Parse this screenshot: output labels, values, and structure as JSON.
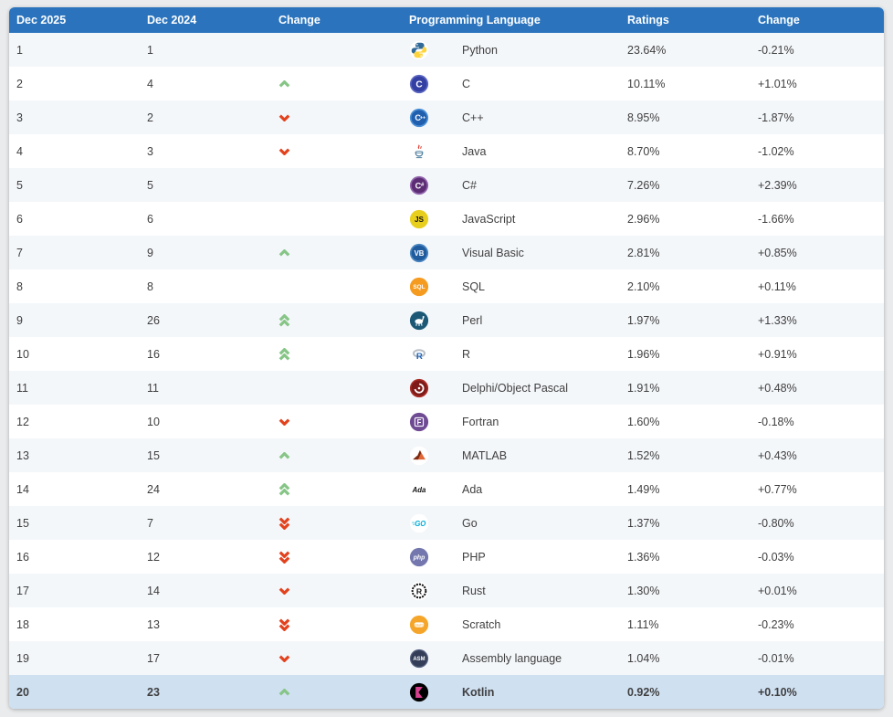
{
  "theme": {
    "page_bg": "#e9ebed",
    "header_bg": "#2b74bd",
    "header_fg": "#ffffff",
    "row_light_bg": "#f4f7fa",
    "row_white_bg": "#ffffff",
    "row_highlight_bg": "#cfe0f1",
    "text_color": "#3f3f3f",
    "up_arrow_color": "#86c586",
    "down_arrow_color": "#e2431e"
  },
  "table": {
    "columns": [
      "Dec 2025",
      "Dec 2024",
      "Change",
      "Programming Language",
      "Ratings",
      "Change"
    ],
    "rows": [
      {
        "rank": "1",
        "prev": "1",
        "trend": "",
        "icon": "python-icon",
        "language": "Python",
        "ratings": "23.64%",
        "change": "-0.21%",
        "highlight": false
      },
      {
        "rank": "2",
        "prev": "4",
        "trend": "up",
        "icon": "c-icon",
        "language": "C",
        "ratings": "10.11%",
        "change": "+1.01%",
        "highlight": false
      },
      {
        "rank": "3",
        "prev": "2",
        "trend": "down",
        "icon": "cpp-icon",
        "language": "C++",
        "ratings": "8.95%",
        "change": "-1.87%",
        "highlight": false
      },
      {
        "rank": "4",
        "prev": "3",
        "trend": "down",
        "icon": "java-icon",
        "language": "Java",
        "ratings": "8.70%",
        "change": "-1.02%",
        "highlight": false
      },
      {
        "rank": "5",
        "prev": "5",
        "trend": "",
        "icon": "csharp-icon",
        "language": "C#",
        "ratings": "7.26%",
        "change": "+2.39%",
        "highlight": false
      },
      {
        "rank": "6",
        "prev": "6",
        "trend": "",
        "icon": "js-icon",
        "language": "JavaScript",
        "ratings": "2.96%",
        "change": "-1.66%",
        "highlight": false
      },
      {
        "rank": "7",
        "prev": "9",
        "trend": "up",
        "icon": "vb-icon",
        "language": "Visual Basic",
        "ratings": "2.81%",
        "change": "+0.85%",
        "highlight": false
      },
      {
        "rank": "8",
        "prev": "8",
        "trend": "",
        "icon": "sql-icon",
        "language": "SQL",
        "ratings": "2.10%",
        "change": "+0.11%",
        "highlight": false
      },
      {
        "rank": "9",
        "prev": "26",
        "trend": "up2",
        "icon": "perl-icon",
        "language": "Perl",
        "ratings": "1.97%",
        "change": "+1.33%",
        "highlight": false
      },
      {
        "rank": "10",
        "prev": "16",
        "trend": "up2",
        "icon": "r-icon",
        "language": "R",
        "ratings": "1.96%",
        "change": "+0.91%",
        "highlight": false
      },
      {
        "rank": "11",
        "prev": "11",
        "trend": "",
        "icon": "delphi-icon",
        "language": "Delphi/Object Pascal",
        "ratings": "1.91%",
        "change": "+0.48%",
        "highlight": false
      },
      {
        "rank": "12",
        "prev": "10",
        "trend": "down",
        "icon": "fortran-icon",
        "language": "Fortran",
        "ratings": "1.60%",
        "change": "-0.18%",
        "highlight": false
      },
      {
        "rank": "13",
        "prev": "15",
        "trend": "up",
        "icon": "matlab-icon",
        "language": "MATLAB",
        "ratings": "1.52%",
        "change": "+0.43%",
        "highlight": false
      },
      {
        "rank": "14",
        "prev": "24",
        "trend": "up2",
        "icon": "ada-icon",
        "language": "Ada",
        "ratings": "1.49%",
        "change": "+0.77%",
        "highlight": false
      },
      {
        "rank": "15",
        "prev": "7",
        "trend": "down2",
        "icon": "go-icon",
        "language": "Go",
        "ratings": "1.37%",
        "change": "-0.80%",
        "highlight": false
      },
      {
        "rank": "16",
        "prev": "12",
        "trend": "down2",
        "icon": "php-icon",
        "language": "PHP",
        "ratings": "1.36%",
        "change": "-0.03%",
        "highlight": false
      },
      {
        "rank": "17",
        "prev": "14",
        "trend": "down",
        "icon": "rust-icon",
        "language": "Rust",
        "ratings": "1.30%",
        "change": "+0.01%",
        "highlight": false
      },
      {
        "rank": "18",
        "prev": "13",
        "trend": "down2",
        "icon": "scratch-icon",
        "language": "Scratch",
        "ratings": "1.11%",
        "change": "-0.23%",
        "highlight": false
      },
      {
        "rank": "19",
        "prev": "17",
        "trend": "down",
        "icon": "asm-icon",
        "language": "Assembly language",
        "ratings": "1.04%",
        "change": "-0.01%",
        "highlight": false
      },
      {
        "rank": "20",
        "prev": "23",
        "trend": "up",
        "icon": "kotlin-icon",
        "language": "Kotlin",
        "ratings": "0.92%",
        "change": "+0.10%",
        "highlight": true
      }
    ]
  },
  "icon_colors": {
    "python": [
      "#306998",
      "#ffd43b"
    ],
    "c": [
      "#5b66c0",
      "#333fa2"
    ],
    "cpp": [
      "#4b8fd6",
      "#1f5fae"
    ],
    "java": [
      "#e03c31",
      "#5382a1"
    ],
    "csharp": [
      "#9164ad",
      "#5c2d74"
    ],
    "js": [
      "#e9cf1d",
      "#111111"
    ],
    "vb": [
      "#4a86c0",
      "#205b9e"
    ],
    "sql": [
      "#f59b20",
      "#ffffff"
    ],
    "perl": [
      "#1c5876",
      "#ffffff"
    ],
    "r": [
      "#b9bec6",
      "#2064b8"
    ],
    "delphi": [
      "#a82b25",
      "#7e1a18"
    ],
    "fortran": [
      "#6f4b93",
      "#ffffff"
    ],
    "matlab": [
      "#e16737",
      "#7c2a12"
    ],
    "ada": [
      "#111111",
      "#ffffff"
    ],
    "go": [
      "#00acd7",
      "#ffffff"
    ],
    "php": [
      "#7377ad",
      "#ffffff"
    ],
    "rust": [
      "#111111",
      "#ffffff"
    ],
    "scratch": [
      "#f5a62a",
      "#ffffff"
    ],
    "asm": [
      "#333d57",
      "#ffffff"
    ],
    "kotlin": [
      "#d6408f",
      "#000000"
    ]
  }
}
